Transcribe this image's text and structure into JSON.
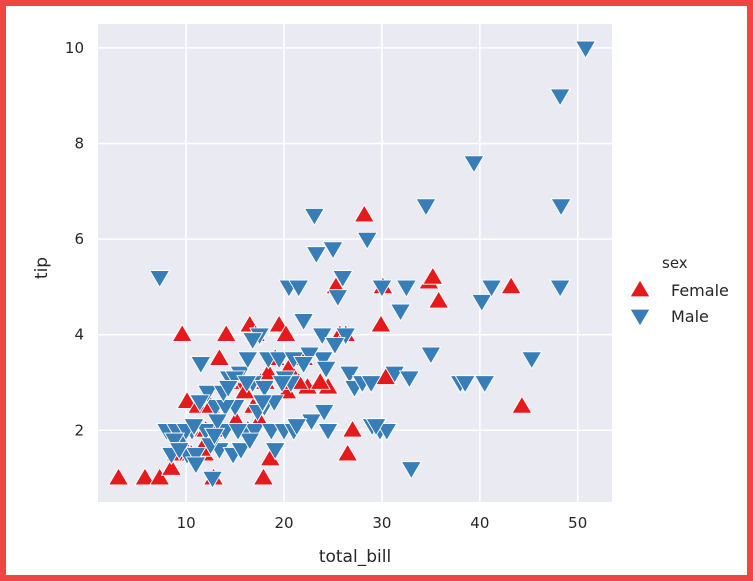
{
  "chart_data": {
    "type": "scatter",
    "xlabel": "total_bill",
    "ylabel": "tip",
    "xlim": [
      1.0,
      53.5
    ],
    "ylim": [
      0.5,
      10.5
    ],
    "x_ticks": [
      "10",
      "20",
      "30",
      "40",
      "50"
    ],
    "y_ticks": [
      "2",
      "4",
      "6",
      "8",
      "10"
    ],
    "grid": true,
    "legend": {
      "title": "sex",
      "placement": "right"
    },
    "series": [
      {
        "name": "Female",
        "color": "#e41a1c",
        "marker": "triangle-up",
        "x": [
          3.1,
          5.8,
          7.3,
          9.6,
          10.1,
          10.3,
          9.0,
          10.5,
          11.2,
          11.9,
          12.8,
          13.4,
          14.1,
          14.8,
          15.7,
          16.3,
          16.5,
          17.1,
          17.6,
          17.9,
          18.1,
          18.6,
          19.5,
          20.2,
          20.3,
          20.9,
          22.4,
          24.5,
          25.3,
          25.7,
          26.3,
          26.5,
          27.0,
          28.2,
          29.9,
          30.1,
          30.4,
          34.8,
          35.2,
          35.8,
          43.2,
          44.3,
          18.4,
          19.1,
          15.1,
          13.0,
          12.5,
          11.6,
          16.9,
          17.5,
          14.5,
          22.0,
          23.7,
          10.6,
          9.4,
          8.5,
          12.0,
          16.0,
          20.5,
          21.5
        ],
        "y": [
          1.0,
          1.0,
          1.0,
          4.0,
          2.6,
          2.0,
          1.5,
          1.5,
          2.5,
          1.5,
          1.0,
          3.5,
          4.0,
          3.0,
          3.0,
          2.0,
          4.2,
          4.0,
          3.0,
          1.0,
          3.0,
          1.4,
          4.2,
          4.0,
          2.8,
          3.0,
          2.9,
          2.9,
          5.0,
          4.0,
          4.0,
          1.5,
          2.0,
          6.5,
          4.2,
          5.0,
          3.1,
          5.1,
          5.2,
          4.7,
          5.0,
          2.5,
          3.2,
          3.5,
          2.2,
          2.0,
          2.5,
          1.6,
          2.5,
          2.2,
          3.0,
          3.5,
          3.0,
          2.0,
          1.8,
          1.2,
          2.0,
          2.8,
          3.3,
          3.0
        ]
      },
      {
        "name": "Male",
        "color": "#377eb8",
        "marker": "triangle-down",
        "x": [
          7.3,
          8.0,
          8.5,
          9.0,
          9.5,
          10.1,
          10.6,
          11.0,
          11.5,
          12.0,
          12.7,
          13.0,
          13.4,
          14.0,
          14.4,
          14.8,
          15.0,
          15.5,
          16.0,
          16.3,
          16.8,
          17.0,
          17.5,
          18.0,
          18.4,
          18.7,
          19.1,
          19.5,
          20.0,
          20.5,
          20.7,
          21.0,
          21.5,
          22.0,
          22.8,
          23.1,
          23.3,
          24.0,
          24.5,
          25.0,
          25.5,
          26.0,
          26.7,
          27.2,
          28.0,
          28.5,
          29.0,
          29.8,
          30.5,
          31.3,
          31.9,
          32.5,
          32.8,
          33.0,
          34.5,
          35.0,
          38.0,
          38.5,
          39.4,
          40.2,
          40.5,
          41.2,
          45.3,
          48.2,
          48.3,
          48.2,
          50.8,
          12.2,
          14.0,
          15.6,
          17.3,
          19.0,
          21.0,
          22.6,
          24.1,
          10.0,
          11.0,
          13.2,
          15.0,
          16.5,
          18.0,
          20.1,
          23.9,
          26.3,
          8.8,
          9.3,
          10.8,
          12.5,
          13.8,
          15.3,
          16.2,
          17.8,
          19.8,
          21.3,
          22.0,
          24.3,
          25.2,
          28.9,
          29.4,
          30.0,
          16.8,
          14.3,
          12.9,
          11.4
        ],
        "y": [
          5.2,
          2.0,
          1.5,
          2.0,
          1.8,
          1.5,
          2.0,
          1.5,
          3.4,
          2.0,
          1.0,
          2.5,
          1.6,
          2.0,
          3.1,
          1.5,
          2.5,
          3.2,
          2.0,
          3.5,
          3.0,
          2.0,
          4.0,
          2.5,
          3.5,
          2.0,
          1.6,
          3.5,
          2.0,
          5.0,
          3.0,
          3.5,
          5.0,
          4.3,
          2.2,
          6.5,
          5.7,
          3.5,
          2.0,
          5.8,
          4.8,
          5.2,
          3.2,
          2.9,
          3.0,
          6.0,
          2.1,
          2.0,
          2.0,
          3.2,
          4.5,
          5.0,
          3.1,
          1.2,
          6.7,
          3.6,
          3.0,
          3.0,
          7.6,
          4.7,
          3.0,
          5.0,
          3.5,
          5.0,
          6.7,
          9.0,
          10.0,
          2.8,
          2.5,
          1.6,
          2.4,
          2.6,
          2.0,
          3.6,
          2.4,
          2.0,
          1.3,
          2.2,
          3.1,
          1.8,
          2.9,
          3.1,
          4.0,
          4.0,
          1.8,
          1.6,
          2.1,
          1.7,
          2.8,
          2.0,
          3.0,
          2.6,
          3.0,
          2.1,
          3.4,
          3.3,
          3.8,
          3.0,
          2.1,
          5.0,
          3.9,
          2.9,
          1.9,
          2.6
        ]
      }
    ]
  }
}
